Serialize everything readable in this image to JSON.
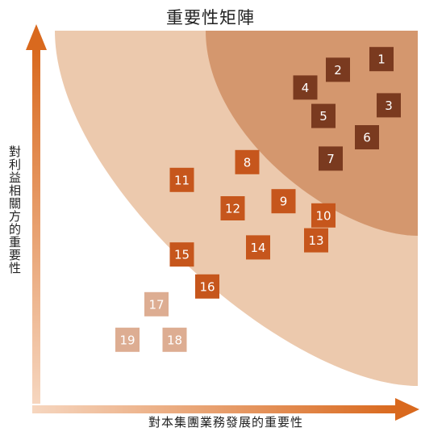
{
  "chart_data": {
    "type": "scatter",
    "title": "重要性矩陣",
    "xlabel": "對本集團業務發展的重要性",
    "ylabel": "對利益相關方的重要性",
    "colors": {
      "outer_region": "#ecc9ad",
      "inner_region": "#d4976e",
      "axis_gradient_start": "#f6d6bf",
      "axis_gradient_end": "#d9691e",
      "high": "#7a3a1f",
      "medium": "#c6561c",
      "low": "#ddad92"
    },
    "points": [
      {
        "label": "1",
        "x": 9.0,
        "y": 9.2,
        "level": "high"
      },
      {
        "label": "2",
        "x": 7.8,
        "y": 8.9,
        "level": "high"
      },
      {
        "label": "3",
        "x": 9.2,
        "y": 7.9,
        "level": "high"
      },
      {
        "label": "4",
        "x": 6.9,
        "y": 8.4,
        "level": "high"
      },
      {
        "label": "5",
        "x": 7.4,
        "y": 7.6,
        "level": "high"
      },
      {
        "label": "6",
        "x": 8.6,
        "y": 7.0,
        "level": "high"
      },
      {
        "label": "7",
        "x": 7.6,
        "y": 6.4,
        "level": "high"
      },
      {
        "label": "8",
        "x": 5.3,
        "y": 6.3,
        "level": "medium"
      },
      {
        "label": "9",
        "x": 6.3,
        "y": 5.2,
        "level": "medium"
      },
      {
        "label": "10",
        "x": 7.4,
        "y": 4.8,
        "level": "medium"
      },
      {
        "label": "11",
        "x": 3.5,
        "y": 5.8,
        "level": "medium"
      },
      {
        "label": "12",
        "x": 4.9,
        "y": 5.0,
        "level": "medium"
      },
      {
        "label": "13",
        "x": 7.2,
        "y": 4.1,
        "level": "medium"
      },
      {
        "label": "14",
        "x": 5.6,
        "y": 3.9,
        "level": "medium"
      },
      {
        "label": "15",
        "x": 3.5,
        "y": 3.7,
        "level": "medium"
      },
      {
        "label": "16",
        "x": 4.2,
        "y": 2.8,
        "level": "medium"
      },
      {
        "label": "17",
        "x": 2.8,
        "y": 2.3,
        "level": "low"
      },
      {
        "label": "18",
        "x": 3.3,
        "y": 1.3,
        "level": "low"
      },
      {
        "label": "19",
        "x": 2.0,
        "y": 1.3,
        "level": "low"
      }
    ],
    "xlim": [
      0,
      10
    ],
    "ylim": [
      0,
      10
    ],
    "grid": false,
    "legend": "none"
  }
}
